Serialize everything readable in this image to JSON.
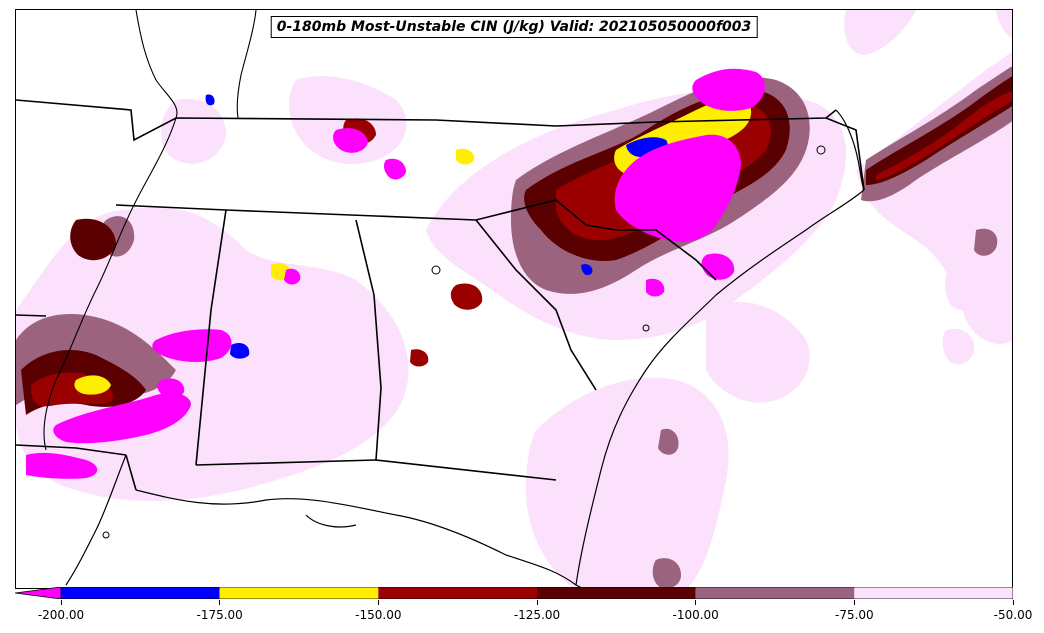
{
  "title": "0-180mb Most-Unstable CIN (J/kg) Valid: 202105050000f003",
  "colorbar": {
    "levels": [
      {
        "label": "-200.00",
        "value": -200
      },
      {
        "label": "-175.00",
        "value": -175
      },
      {
        "label": "-150.00",
        "value": -150
      },
      {
        "label": "-125.00",
        "value": -125
      },
      {
        "label": "-100.00",
        "value": -100
      },
      {
        "label": "-75.00",
        "value": -75
      },
      {
        "label": "-50.00",
        "value": -50
      }
    ],
    "colors": [
      "#0000ff",
      "#ffee00",
      "#9b0000",
      "#5a0000",
      "#9b637d",
      "#fbe1fb"
    ],
    "extend_color": "#ff00ff",
    "extend": "min"
  },
  "colors": {
    "lt_pink": "#fbe1fb",
    "mauve": "#9b637d",
    "dk_red": "#5a0000",
    "red": "#9b0000",
    "yellow": "#ffee00",
    "blue": "#0000ff",
    "magenta": "#ff00ff"
  }
}
